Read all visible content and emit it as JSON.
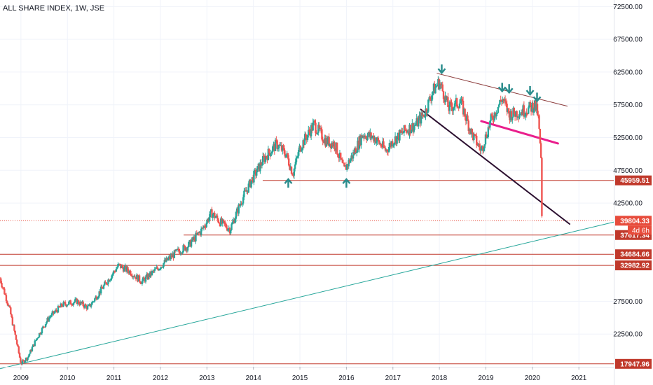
{
  "header": {
    "title": "ALL SHARE INDEX, 1W, JSE"
  },
  "chart_data": {
    "type": "candlestick",
    "title": "ALL SHARE INDEX, 1W, JSE",
    "x_ticks": [
      "2009",
      "2010",
      "2011",
      "2012",
      "2013",
      "2014",
      "2015",
      "2016",
      "2017",
      "2018",
      "2019",
      "2020",
      "2021"
    ],
    "y_ticks": [
      "72500.00",
      "67500.00",
      "62500.00",
      "57500.00",
      "52500.00",
      "47500.00",
      "42500.00",
      "27500.00",
      "22500.00"
    ],
    "ylim": [
      17500,
      73500
    ],
    "xlim": [
      2008.55,
      2021.75
    ],
    "price_path": [
      [
        2008.55,
        31000
      ],
      [
        2008.75,
        26500
      ],
      [
        2008.9,
        21500
      ],
      [
        2009.0,
        18000
      ],
      [
        2009.15,
        19000
      ],
      [
        2009.35,
        22000
      ],
      [
        2009.6,
        25000
      ],
      [
        2009.9,
        27000
      ],
      [
        2010.2,
        27500
      ],
      [
        2010.45,
        26500
      ],
      [
        2010.7,
        29000
      ],
      [
        2010.95,
        31500
      ],
      [
        2011.1,
        33000
      ],
      [
        2011.35,
        32000
      ],
      [
        2011.6,
        30500
      ],
      [
        2011.85,
        32000
      ],
      [
        2012.1,
        33500
      ],
      [
        2012.35,
        35000
      ],
      [
        2012.6,
        36000
      ],
      [
        2012.9,
        38500
      ],
      [
        2013.1,
        41000
      ],
      [
        2013.3,
        39500
      ],
      [
        2013.5,
        38500
      ],
      [
        2013.75,
        43000
      ],
      [
        2014.0,
        46500
      ],
      [
        2014.25,
        49500
      ],
      [
        2014.5,
        51500
      ],
      [
        2014.7,
        50000
      ],
      [
        2014.85,
        47000
      ],
      [
        2015.0,
        51000
      ],
      [
        2015.3,
        54500
      ],
      [
        2015.55,
        52000
      ],
      [
        2015.75,
        51500
      ],
      [
        2015.95,
        47500
      ],
      [
        2016.15,
        50000
      ],
      [
        2016.35,
        53000
      ],
      [
        2016.6,
        52500
      ],
      [
        2016.85,
        50500
      ],
      [
        2017.0,
        52000
      ],
      [
        2017.25,
        53500
      ],
      [
        2017.5,
        54500
      ],
      [
        2017.7,
        56500
      ],
      [
        2017.85,
        59500
      ],
      [
        2018.0,
        61000
      ],
      [
        2018.2,
        57000
      ],
      [
        2018.45,
        58000
      ],
      [
        2018.7,
        53000
      ],
      [
        2018.9,
        50500
      ],
      [
        2019.1,
        55000
      ],
      [
        2019.35,
        58500
      ],
      [
        2019.5,
        56000
      ],
      [
        2019.75,
        56500
      ],
      [
        2019.95,
        57000
      ],
      [
        2020.05,
        57500
      ],
      [
        2020.12,
        56000
      ],
      [
        2020.18,
        50000
      ],
      [
        2020.22,
        40500
      ]
    ],
    "horizontal_levels": [
      {
        "value": 45959.51,
        "label": "45959.51",
        "color": "#c0392b",
        "x_from": 2014.2
      },
      {
        "value": 37617.34,
        "label": "37617.34",
        "color": "#c0392b",
        "x_from": 2012.5
      },
      {
        "value": 34684.66,
        "label": "34684.66",
        "color": "#c0392b",
        "x_from": 2008.55
      },
      {
        "value": 32982.92,
        "label": "32982.92",
        "color": "#c0392b",
        "x_from": 2008.55
      },
      {
        "value": 17947.96,
        "label": "17947.96",
        "color": "#c0392b",
        "x_from": 2008.55
      }
    ],
    "last_price": {
      "value": 39804.33,
      "label": "39804.33",
      "countdown": "4d 6h",
      "color": "#e74c3c"
    },
    "trendlines": [
      {
        "from": [
          2008.55,
          17200
        ],
        "to": [
          2021.75,
          39600
        ],
        "color": "#26a69a",
        "width": 1
      },
      {
        "from": [
          2017.6,
          56800
        ],
        "to": [
          2020.8,
          39300
        ],
        "color": "#2b0f2f",
        "width": 2
      },
      {
        "from": [
          2017.95,
          62300
        ],
        "to": [
          2020.75,
          57300
        ],
        "color": "#8b3a3a",
        "width": 1
      },
      {
        "from": [
          2018.9,
          55000
        ],
        "to": [
          2020.55,
          51600
        ],
        "color": "#e91e8c",
        "width": 3
      }
    ],
    "markers": [
      {
        "type": "up",
        "x": 2014.75,
        "y": 45700
      },
      {
        "type": "up",
        "x": 2016.0,
        "y": 45700
      },
      {
        "type": "down",
        "x": 2018.05,
        "y": 62800
      },
      {
        "type": "down",
        "x": 2019.35,
        "y": 60000
      },
      {
        "type": "down",
        "x": 2019.5,
        "y": 59800
      },
      {
        "type": "down",
        "x": 2019.95,
        "y": 59500
      },
      {
        "type": "down",
        "x": 2020.1,
        "y": 58500
      }
    ],
    "colors": {
      "up": "#26a69a",
      "down": "#ef5350",
      "marker": "#2a8c8c"
    }
  }
}
